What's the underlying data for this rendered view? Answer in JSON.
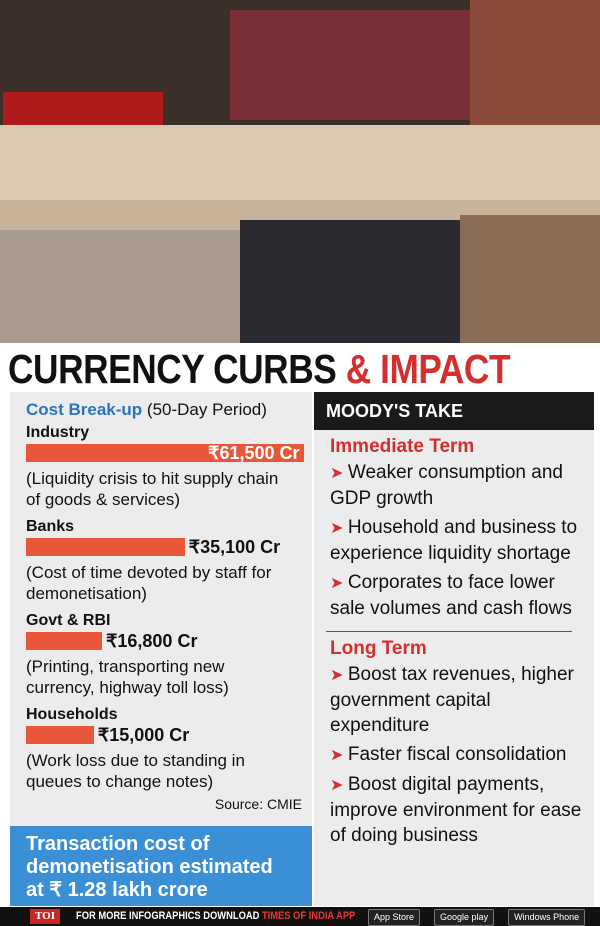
{
  "title": {
    "part1": "CURRENCY CURBS",
    "part2": "& IMPACT"
  },
  "chart_data": {
    "type": "bar",
    "title": "Cost Break-up",
    "subtitle": "(50-Day Period)",
    "categories": [
      "Industry",
      "Banks",
      "Govt & RBI",
      "Households"
    ],
    "values": [
      61500,
      35100,
      16800,
      15000
    ],
    "value_labels": [
      "₹61,500 Cr",
      "₹35,100 Cr",
      "₹16,800 Cr",
      "₹15,000 Cr"
    ],
    "notes": [
      "(Liquidity crisis to hit supply chain of goods & services)",
      "(Cost of time devoted by staff for demonetisation)",
      "(Printing, transporting new currency, highway toll loss)",
      "(Work loss due to standing in queues to change notes)"
    ],
    "color": "#e8573a",
    "source": "Source: CMIE"
  },
  "highlight": [
    "Transaction cost of",
    "demonetisation estimated",
    "at ₹ 1.28 lakh crore"
  ],
  "moodys": {
    "title": "MOODY'S TAKE",
    "sections": [
      {
        "heading": "Immediate Term",
        "items": [
          "Weaker consumption and GDP growth",
          "Household and business to experience liquidity shortage",
          "Corporates to face lower sale volumes and cash flows"
        ]
      },
      {
        "heading": "Long Term",
        "items": [
          "Boost tax revenues, higher government capital expenditure",
          "Faster fiscal consolidation",
          "Boost digital payments, improve environment for ease of doing business"
        ]
      }
    ]
  },
  "footer": {
    "brand": "TOI",
    "text": "FOR MORE INFOGRAPHICS DOWNLOAD",
    "app": "TIMES OF INDIA APP",
    "badges": [
      "App Store",
      "Google play",
      "Windows Phone"
    ]
  }
}
